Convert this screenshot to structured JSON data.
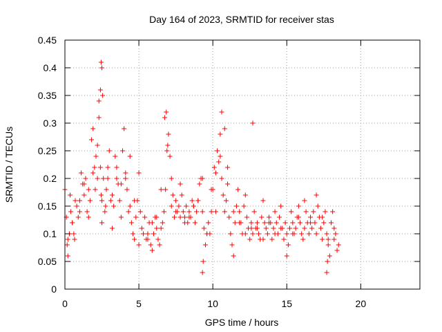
{
  "chart_data": {
    "type": "scatter",
    "title": "Day 164 of 2023, SRMTID for receiver stas",
    "xlabel": "GPS time / hours",
    "ylabel": "SRMTID / TECUs",
    "xlim": [
      0,
      24
    ],
    "ylim": [
      0,
      0.45
    ],
    "x_ticks": [
      "0",
      "5",
      "10",
      "15",
      "20"
    ],
    "y_ticks": [
      "0",
      "0.05",
      "0.1",
      "0.15",
      "0.2",
      "0.25",
      "0.3",
      "0.35",
      "0.4",
      "0.45"
    ],
    "grid": true,
    "marker": "+",
    "color": "#ff0000",
    "series": [
      {
        "x": [
          0.0,
          0.1,
          0.15,
          0.2,
          0.3,
          0.35,
          0.4,
          0.5,
          0.6,
          0.65,
          0.8,
          0.9,
          1.0,
          1.1,
          1.2,
          1.3,
          1.4,
          1.5,
          1.6,
          1.7,
          1.8,
          1.9,
          2.0,
          2.05,
          2.1,
          2.2,
          2.3,
          2.4,
          2.45,
          2.5,
          2.6,
          2.7,
          2.8,
          2.9,
          3.0,
          3.1,
          3.2,
          3.3,
          3.4,
          3.5,
          3.6,
          3.7,
          3.8,
          3.9,
          4.0,
          4.1,
          4.2,
          4.3,
          4.4,
          4.5,
          4.6,
          4.7,
          4.8,
          4.9,
          5.0,
          5.1,
          5.2,
          5.3,
          5.4,
          5.5,
          5.6,
          5.7,
          5.8,
          5.9,
          6.0,
          6.1,
          6.2,
          6.3,
          6.4,
          6.5,
          6.6,
          6.7,
          6.8,
          6.9,
          7.0,
          7.1,
          7.2,
          7.3,
          7.4,
          7.5,
          7.6,
          7.7,
          7.8,
          7.9,
          8.0,
          8.1,
          8.2,
          8.3,
          8.4,
          8.5,
          8.6,
          8.7,
          8.8,
          8.9,
          9.0,
          9.1,
          9.2,
          9.3,
          9.4,
          9.5,
          9.6,
          9.7,
          9.8,
          9.9,
          10.0,
          10.1,
          10.2,
          10.3,
          10.4,
          10.5,
          10.6,
          10.7,
          10.8,
          10.9,
          11.0,
          11.1,
          11.2,
          11.3,
          11.4,
          11.5,
          11.6,
          11.7,
          11.8,
          11.9,
          12.0,
          12.1,
          12.2,
          12.3,
          12.4,
          12.5,
          12.6,
          12.7,
          12.8,
          12.9,
          13.0,
          13.1,
          13.2,
          13.3,
          13.4,
          13.5,
          13.6,
          13.7,
          13.8,
          13.9,
          14.0,
          14.1,
          14.2,
          14.3,
          14.4,
          14.5,
          14.6,
          14.7,
          14.8,
          14.9,
          15.0,
          15.1,
          15.2,
          15.3,
          15.4,
          15.5,
          15.6,
          15.7,
          15.8,
          15.9,
          16.0,
          16.1,
          16.2,
          16.3,
          16.4,
          16.5,
          16.6,
          16.7,
          16.8,
          16.9,
          17.0,
          17.1,
          17.2,
          17.3,
          17.4,
          17.5,
          17.6,
          17.7,
          17.8,
          17.9,
          18.0,
          18.1,
          18.2,
          18.3,
          18.4,
          18.5,
          0.2,
          0.3,
          0.5,
          0.7,
          1.0,
          1.3,
          1.6,
          1.9,
          2.2,
          2.5,
          2.75,
          2.9,
          3.2,
          3.5,
          3.8,
          4.1,
          4.4,
          4.7,
          5.0,
          5.3,
          5.6,
          5.9,
          6.2,
          6.5,
          6.75,
          6.85,
          6.95,
          7.2,
          7.5,
          7.8,
          8.1,
          8.4,
          8.7,
          9.0,
          9.3,
          9.6,
          9.9,
          10.2,
          10.5,
          10.6,
          10.8,
          11.0,
          11.4,
          11.8,
          12.2,
          12.6,
          12.7,
          13.0,
          13.4,
          13.8,
          14.2,
          14.6,
          15.0,
          15.4,
          15.8,
          16.2,
          16.6,
          17.0,
          17.4,
          17.8,
          18.2,
          2.3,
          2.4,
          2.45,
          2.5,
          2.55,
          9.3,
          9.35,
          17.7,
          17.75
        ],
        "y": [
          0.18,
          0.13,
          0.08,
          0.06,
          0.1,
          0.17,
          0.14,
          0.12,
          0.1,
          0.09,
          0.15,
          0.13,
          0.16,
          0.21,
          0.19,
          0.17,
          0.2,
          0.14,
          0.13,
          0.16,
          0.27,
          0.29,
          0.22,
          0.18,
          0.24,
          0.26,
          0.31,
          0.22,
          0.17,
          0.16,
          0.2,
          0.14,
          0.18,
          0.22,
          0.25,
          0.16,
          0.11,
          0.15,
          0.24,
          0.2,
          0.19,
          0.16,
          0.13,
          0.25,
          0.29,
          0.21,
          0.18,
          0.14,
          0.15,
          0.12,
          0.1,
          0.09,
          0.13,
          0.16,
          0.21,
          0.14,
          0.11,
          0.1,
          0.13,
          0.09,
          0.1,
          0.12,
          0.08,
          0.07,
          0.1,
          0.13,
          0.11,
          0.09,
          0.08,
          0.11,
          0.12,
          0.14,
          0.18,
          0.25,
          0.28,
          0.24,
          0.2,
          0.17,
          0.13,
          0.16,
          0.14,
          0.15,
          0.19,
          0.17,
          0.14,
          0.13,
          0.15,
          0.12,
          0.14,
          0.13,
          0.16,
          0.15,
          0.12,
          0.14,
          0.16,
          0.19,
          0.2,
          0.14,
          0.11,
          0.08,
          0.1,
          0.12,
          0.1,
          0.14,
          0.18,
          0.22,
          0.21,
          0.25,
          0.23,
          0.28,
          0.2,
          0.17,
          0.14,
          0.16,
          0.19,
          0.13,
          0.1,
          0.08,
          0.06,
          0.12,
          0.15,
          0.18,
          0.14,
          0.12,
          0.1,
          0.15,
          0.17,
          0.13,
          0.11,
          0.09,
          0.12,
          0.1,
          0.14,
          0.11,
          0.12,
          0.1,
          0.09,
          0.13,
          0.16,
          0.12,
          0.11,
          0.1,
          0.13,
          0.12,
          0.09,
          0.11,
          0.14,
          0.12,
          0.1,
          0.13,
          0.15,
          0.11,
          0.09,
          0.12,
          0.1,
          0.08,
          0.11,
          0.14,
          0.12,
          0.1,
          0.11,
          0.13,
          0.15,
          0.12,
          0.1,
          0.09,
          0.11,
          0.14,
          0.12,
          0.1,
          0.13,
          0.11,
          0.14,
          0.12,
          0.1,
          0.15,
          0.13,
          0.11,
          0.09,
          0.12,
          0.14,
          0.1,
          0.08,
          0.06,
          0.12,
          0.14,
          0.09,
          0.1,
          0.07,
          0.08,
          0.09,
          0.1,
          0.12,
          0.16,
          0.14,
          0.19,
          0.18,
          0.21,
          0.2,
          0.12,
          0.15,
          0.2,
          0.17,
          0.22,
          0.19,
          0.2,
          0.24,
          0.16,
          0.08,
          0.1,
          0.09,
          0.12,
          0.13,
          0.18,
          0.31,
          0.32,
          0.26,
          0.15,
          0.14,
          0.13,
          0.12,
          0.13,
          0.15,
          0.16,
          0.2,
          0.1,
          0.18,
          0.14,
          0.24,
          0.32,
          0.29,
          0.22,
          0.14,
          0.12,
          0.1,
          0.11,
          0.3,
          0.11,
          0.09,
          0.12,
          0.1,
          0.11,
          0.06,
          0.1,
          0.13,
          0.16,
          0.12,
          0.17,
          0.13,
          0.09,
          0.11,
          0.34,
          0.36,
          0.41,
          0.4,
          0.35,
          0.03,
          0.05,
          0.03,
          0.05
        ]
      }
    ]
  }
}
